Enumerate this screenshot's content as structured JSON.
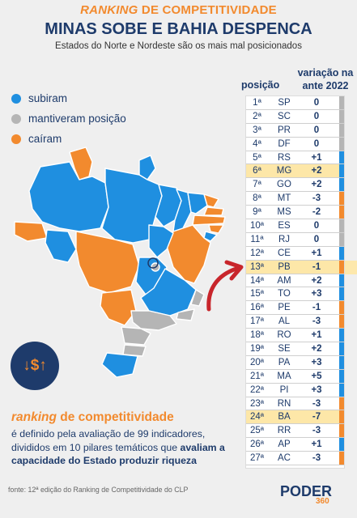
{
  "header": {
    "kicker_italic": "RANKING",
    "kicker_rest": " DE COMPETITIVIDADE",
    "title": "MINAS SOBE E BAHIA DESPENCA",
    "subtitle": "Estados do Norte e Nordeste são os mais mal posicionados"
  },
  "legend": [
    {
      "label": "subiram",
      "color": "#1f8fe0"
    },
    {
      "label": "mantiveram posição",
      "color": "#b5b5b5"
    },
    {
      "label": "caíram",
      "color": "#f28a2e"
    }
  ],
  "table": {
    "col_position": "posição",
    "col_change": "variação na ante 2022",
    "rows": [
      {
        "pos": "1ª",
        "uf": "SP",
        "change": "0"
      },
      {
        "pos": "2ª",
        "uf": "SC",
        "change": "0"
      },
      {
        "pos": "3ª",
        "uf": "PR",
        "change": "0"
      },
      {
        "pos": "4ª",
        "uf": "DF",
        "change": "0"
      },
      {
        "pos": "5ª",
        "uf": "RS",
        "change": "+1"
      },
      {
        "pos": "6ª",
        "uf": "MG",
        "change": "+2"
      },
      {
        "pos": "7ª",
        "uf": "GO",
        "change": "+2"
      },
      {
        "pos": "8ª",
        "uf": "MT",
        "change": "-3"
      },
      {
        "pos": "9ª",
        "uf": "MS",
        "change": "-2"
      },
      {
        "pos": "10ª",
        "uf": "ES",
        "change": "0"
      },
      {
        "pos": "11ª",
        "uf": "RJ",
        "change": "0"
      },
      {
        "pos": "12ª",
        "uf": "CE",
        "change": "+1"
      },
      {
        "pos": "13ª",
        "uf": "PB",
        "change": "-1"
      },
      {
        "pos": "14ª",
        "uf": "AM",
        "change": "+2"
      },
      {
        "pos": "15ª",
        "uf": "TO",
        "change": "+3"
      },
      {
        "pos": "16ª",
        "uf": "PE",
        "change": "-1"
      },
      {
        "pos": "17ª",
        "uf": "AL",
        "change": "-3"
      },
      {
        "pos": "18ª",
        "uf": "RO",
        "change": "+1"
      },
      {
        "pos": "19ª",
        "uf": "SE",
        "change": "+2"
      },
      {
        "pos": "20ª",
        "uf": "PA",
        "change": "+3"
      },
      {
        "pos": "21ª",
        "uf": "MA",
        "change": "+5"
      },
      {
        "pos": "22ª",
        "uf": "PI",
        "change": "+3"
      },
      {
        "pos": "23ª",
        "uf": "RN",
        "change": "-3"
      },
      {
        "pos": "24ª",
        "uf": "BA",
        "change": "-7"
      },
      {
        "pos": "25ª",
        "uf": "RR",
        "change": "-3"
      },
      {
        "pos": "26ª",
        "uf": "AP",
        "change": "+1"
      },
      {
        "pos": "27ª",
        "uf": "AC",
        "change": "-3"
      }
    ]
  },
  "icon_text": "↓$↑",
  "definition": {
    "head_italic": "ranking",
    "head_rest": " de competitividade",
    "body_plain": "é definido pela avaliação de 99 indicadores, divididos em 10 pilares temáticos que ",
    "body_bold": "avaliam a capacidade do Estado produzir riqueza"
  },
  "source": "fonte: 12ª edição do Ranking de Competitividade do CLP",
  "logo": {
    "word": "PODER",
    "number": "360"
  }
}
